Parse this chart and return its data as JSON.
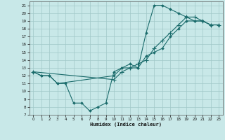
{
  "xlabel": "Humidex (Indice chaleur)",
  "bg_color": "#c8e8e8",
  "line_color": "#1a6b6b",
  "grid_color": "#a0c8c8",
  "xlim": [
    -0.5,
    23.5
  ],
  "ylim": [
    7,
    21.5
  ],
  "xticks": [
    0,
    1,
    2,
    3,
    4,
    5,
    6,
    7,
    8,
    9,
    10,
    11,
    12,
    13,
    14,
    15,
    16,
    17,
    18,
    19,
    20,
    21,
    22,
    23
  ],
  "yticks": [
    7,
    8,
    9,
    10,
    11,
    12,
    13,
    14,
    15,
    16,
    17,
    18,
    19,
    20,
    21
  ],
  "line1_x": [
    0,
    1,
    2,
    3,
    4,
    5,
    6,
    7,
    8,
    9,
    10,
    11,
    12,
    13,
    14,
    15,
    16,
    17,
    18,
    19,
    20,
    21,
    22,
    23
  ],
  "line1_y": [
    12.5,
    12.0,
    12.0,
    11.0,
    11.0,
    8.5,
    8.5,
    7.5,
    8.0,
    8.5,
    12.5,
    13.0,
    13.0,
    13.0,
    17.5,
    21.0,
    21.0,
    20.5,
    20.0,
    19.5,
    19.0,
    19.0,
    18.5,
    18.5
  ],
  "line2_x": [
    0,
    1,
    2,
    3,
    10,
    11,
    12,
    13,
    14,
    15,
    16,
    17,
    18,
    19,
    20,
    21,
    22,
    23
  ],
  "line2_y": [
    12.5,
    12.0,
    12.0,
    11.0,
    12.0,
    13.0,
    13.5,
    13.0,
    14.5,
    15.0,
    15.5,
    17.0,
    18.0,
    19.0,
    19.0,
    19.0,
    18.5,
    18.5
  ],
  "line3_x": [
    0,
    10,
    11,
    12,
    13,
    14,
    15,
    16,
    17,
    18,
    19,
    20,
    21,
    22,
    23
  ],
  "line3_y": [
    12.5,
    11.5,
    12.5,
    13.0,
    13.5,
    14.0,
    15.5,
    16.5,
    17.5,
    18.5,
    19.5,
    19.5,
    19.0,
    18.5,
    18.5
  ]
}
